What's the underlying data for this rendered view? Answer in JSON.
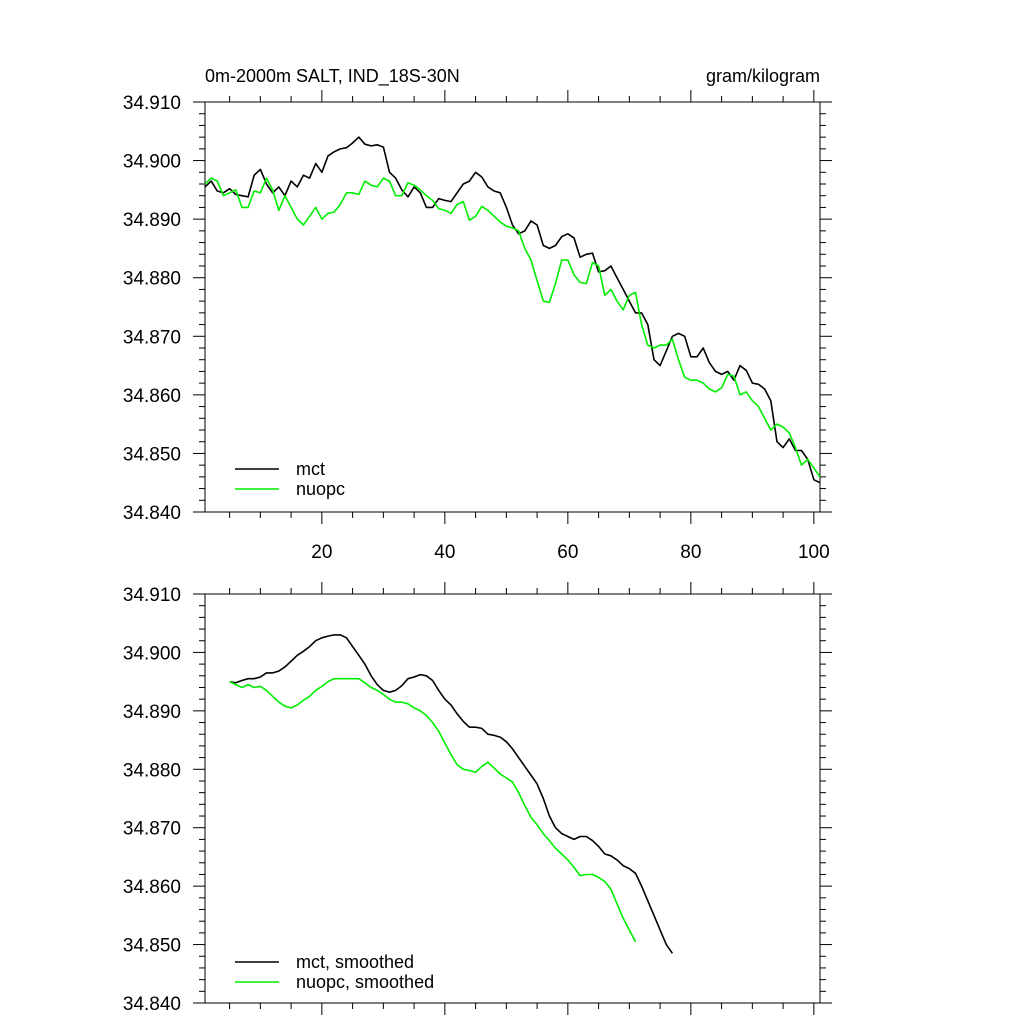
{
  "figure": {
    "title_left": "0m-2000m SALT, IND_18S-30N",
    "title_right": "gram/kilogram"
  },
  "colors": {
    "mct": "#000000",
    "nuopc": "#00ee00"
  },
  "chart_data": [
    {
      "type": "line",
      "title": "0m-2000m SALT, IND_18S-30N",
      "units": "gram/kilogram",
      "xlabel": "",
      "ylabel": "",
      "xlim": [
        1,
        101
      ],
      "ylim": [
        34.84,
        34.91
      ],
      "x_ticks": [
        20,
        40,
        60,
        80,
        100
      ],
      "x_tick_labels": [
        "20",
        "40",
        "60",
        "80",
        "100"
      ],
      "y_ticks": [
        34.84,
        34.85,
        34.86,
        34.87,
        34.88,
        34.89,
        34.9,
        34.91
      ],
      "y_tick_labels": [
        "34.840",
        "34.850",
        "34.860",
        "34.870",
        "34.880",
        "34.890",
        "34.900",
        "34.910"
      ],
      "legend_position": "bottom-left",
      "x_start": 1,
      "series": [
        {
          "name": "mct",
          "color": "#000000",
          "values": [
            34.8955,
            34.8965,
            34.8948,
            34.8945,
            34.8952,
            34.8942,
            34.894,
            34.8938,
            34.8975,
            34.8985,
            34.896,
            34.8945,
            34.8955,
            34.894,
            34.8965,
            34.8955,
            34.8975,
            34.897,
            34.8995,
            34.898,
            34.9008,
            34.9015,
            34.902,
            34.9022,
            34.903,
            34.904,
            34.9028,
            34.9025,
            34.9027,
            34.9023,
            34.898,
            34.897,
            34.895,
            34.8938,
            34.8955,
            34.8945,
            34.892,
            34.892,
            34.8935,
            34.8932,
            34.893,
            34.8945,
            34.896,
            34.8965,
            34.898,
            34.8972,
            34.8955,
            34.8948,
            34.8945,
            34.892,
            34.889,
            34.8875,
            34.888,
            34.8897,
            34.889,
            34.8855,
            34.885,
            34.8855,
            34.887,
            34.8875,
            34.8868,
            34.8835,
            34.884,
            34.8842,
            34.881,
            34.8812,
            34.882,
            34.88,
            34.878,
            34.876,
            34.874,
            34.874,
            34.872,
            34.866,
            34.865,
            34.8675,
            34.87,
            34.8705,
            34.87,
            34.8665,
            34.8665,
            34.868,
            34.8655,
            34.864,
            34.8635,
            34.864,
            34.8625,
            34.865,
            34.8642,
            34.862,
            34.8618,
            34.861,
            34.859,
            34.852,
            34.851,
            34.8525,
            34.8505,
            34.8505,
            34.849,
            34.8455,
            34.845
          ]
        },
        {
          "name": "nuopc",
          "color": "#00ee00",
          "values": [
            34.896,
            34.897,
            34.8965,
            34.894,
            34.8945,
            34.895,
            34.892,
            34.892,
            34.8948,
            34.8945,
            34.897,
            34.895,
            34.8915,
            34.894,
            34.892,
            34.89,
            34.889,
            34.8905,
            34.892,
            34.89,
            34.891,
            34.8912,
            34.8925,
            34.8945,
            34.8945,
            34.8942,
            34.8965,
            34.8958,
            34.8955,
            34.897,
            34.8965,
            34.894,
            34.894,
            34.8962,
            34.8958,
            34.895,
            34.894,
            34.8932,
            34.8918,
            34.8915,
            34.891,
            34.8925,
            34.893,
            34.8898,
            34.8905,
            34.8922,
            34.8915,
            34.8905,
            34.8895,
            34.8888,
            34.8885,
            34.888,
            34.885,
            34.883,
            34.8795,
            34.876,
            34.8758,
            34.879,
            34.883,
            34.883,
            34.8805,
            34.8792,
            34.879,
            34.8826,
            34.882,
            34.877,
            34.878,
            34.876,
            34.8745,
            34.877,
            34.8775,
            34.872,
            34.8685,
            34.868,
            34.8685,
            34.8685,
            34.8695,
            34.866,
            34.863,
            34.8625,
            34.8625,
            34.862,
            34.861,
            34.8605,
            34.8612,
            34.8635,
            34.8632,
            34.86,
            34.8605,
            34.859,
            34.858,
            34.856,
            34.854,
            34.855,
            34.8545,
            34.8535,
            34.851,
            34.848,
            34.849,
            34.8475,
            34.846
          ]
        }
      ]
    },
    {
      "type": "line",
      "title": "",
      "xlabel": "",
      "ylabel": "",
      "xlim": [
        1,
        101
      ],
      "ylim": [
        34.84,
        34.91
      ],
      "x_ticks": [
        20,
        40,
        60,
        80,
        100
      ],
      "y_ticks": [
        34.84,
        34.85,
        34.86,
        34.87,
        34.88,
        34.89,
        34.9,
        34.91
      ],
      "y_tick_labels": [
        "34.840",
        "34.850",
        "34.860",
        "34.870",
        "34.880",
        "34.890",
        "34.900",
        "34.910"
      ],
      "legend_position": "bottom-left",
      "x_start": 5,
      "series": [
        {
          "name": "mct, smoothed",
          "color": "#000000",
          "values": [
            34.895,
            34.8948,
            34.8952,
            34.8955,
            34.8955,
            34.8958,
            34.8965,
            34.8965,
            34.8968,
            34.8975,
            34.8985,
            34.8995,
            34.9002,
            34.901,
            34.902,
            34.9025,
            34.9028,
            34.903,
            34.903,
            34.9025,
            34.901,
            34.8995,
            34.898,
            34.896,
            34.8945,
            34.8935,
            34.8932,
            34.8935,
            34.8943,
            34.8955,
            34.8958,
            34.8962,
            34.896,
            34.8952,
            34.8935,
            34.892,
            34.891,
            34.8895,
            34.8882,
            34.8872,
            34.8872,
            34.887,
            34.886,
            34.8858,
            34.8855,
            34.8847,
            34.8835,
            34.882,
            34.8805,
            34.879,
            34.8775,
            34.875,
            34.872,
            34.87,
            34.869,
            34.8685,
            34.868,
            34.8685,
            34.8685,
            34.8678,
            34.8668,
            34.8655,
            34.8652,
            34.8645,
            34.8635,
            34.863,
            34.8622,
            34.86,
            34.8575,
            34.855,
            34.8525,
            34.85,
            34.8485
          ]
        },
        {
          "name": "nuopc, smoothed",
          "color": "#00ee00",
          "values": [
            34.895,
            34.8945,
            34.894,
            34.8945,
            34.894,
            34.8942,
            34.8935,
            34.8925,
            34.8915,
            34.8908,
            34.8905,
            34.891,
            34.8918,
            34.8925,
            34.8935,
            34.8942,
            34.895,
            34.8955,
            34.8955,
            34.8955,
            34.8955,
            34.8955,
            34.8948,
            34.894,
            34.8935,
            34.8928,
            34.892,
            34.8915,
            34.8915,
            34.8912,
            34.8905,
            34.89,
            34.8892,
            34.888,
            34.8865,
            34.8845,
            34.8825,
            34.8808,
            34.88,
            34.8798,
            34.8795,
            34.8805,
            34.8812,
            34.8802,
            34.8792,
            34.8785,
            34.8778,
            34.876,
            34.8738,
            34.8718,
            34.8705,
            34.869,
            34.8678,
            34.8665,
            34.8655,
            34.8645,
            34.8632,
            34.8618,
            34.862,
            34.862,
            34.8615,
            34.8608,
            34.8595,
            34.857,
            34.8545,
            34.8525,
            34.8505
          ]
        }
      ]
    }
  ]
}
